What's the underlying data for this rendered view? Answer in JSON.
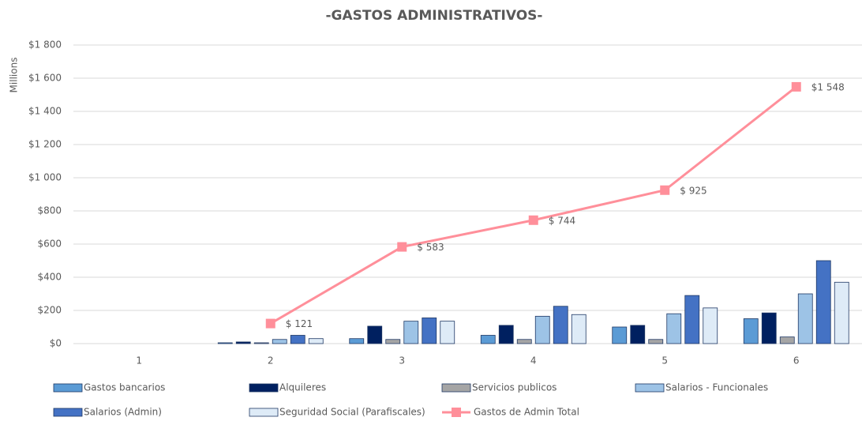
{
  "chart_data": {
    "type": "bar",
    "title": "-GASTOS ADMINISTRATIVOS-",
    "y_label": "Millions",
    "categories": [
      "1",
      "2",
      "3",
      "4",
      "5",
      "6"
    ],
    "ylim": [
      0,
      1800
    ],
    "yticks": [
      {
        "value": 0,
        "label": "$0"
      },
      {
        "value": 200,
        "label": "$200"
      },
      {
        "value": 400,
        "label": "$400"
      },
      {
        "value": 600,
        "label": "$600"
      },
      {
        "value": 800,
        "label": "$800"
      },
      {
        "value": 1000,
        "label": "$1 000"
      },
      {
        "value": 1200,
        "label": "$1 200"
      },
      {
        "value": 1400,
        "label": "$1 400"
      },
      {
        "value": 1600,
        "label": "$1 600"
      },
      {
        "value": 1800,
        "label": "$1 800"
      }
    ],
    "grid": true,
    "series": [
      {
        "name": "Gastos bancarios",
        "color": "#5b9bd5",
        "values": [
          0,
          5,
          30,
          50,
          100,
          150
        ]
      },
      {
        "name": "Alquileres",
        "color": "#002060",
        "values": [
          0,
          10,
          105,
          110,
          110,
          185
        ]
      },
      {
        "name": "Servicios publicos",
        "color": "#a5a5a5",
        "values": [
          0,
          5,
          25,
          25,
          25,
          40
        ]
      },
      {
        "name": "Salarios - Funcionales",
        "color": "#9dc3e6",
        "values": [
          0,
          25,
          135,
          165,
          180,
          300
        ]
      },
      {
        "name": "Salarios (Admin)",
        "color": "#4472c4",
        "values": [
          0,
          50,
          155,
          225,
          290,
          500
        ]
      },
      {
        "name": "Seguridad Social (Parafiscales)",
        "color": "#deebf7",
        "values": [
          0,
          30,
          135,
          175,
          215,
          370
        ]
      },
      {
        "name": "Gastos de Admin Total",
        "color": "#ff8f9a",
        "type": "line",
        "values": [
          null,
          121,
          583,
          744,
          925,
          1548
        ],
        "value_labels": [
          null,
          "$ 121",
          "$ 583",
          "$ 744",
          "$ 925",
          "$1 548"
        ]
      }
    ]
  }
}
